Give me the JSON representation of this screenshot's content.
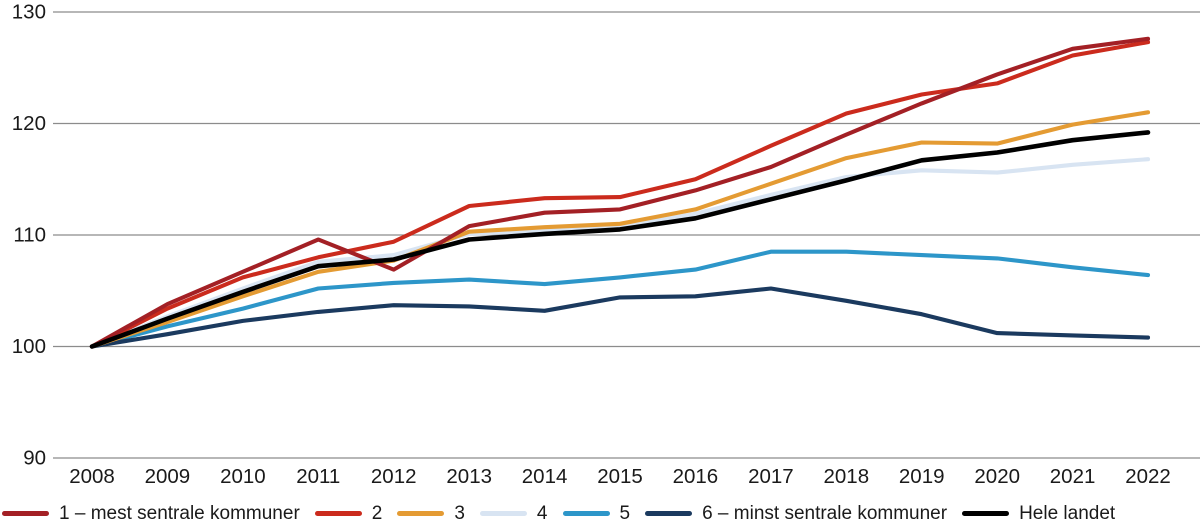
{
  "chart_data": {
    "type": "line",
    "title": "",
    "xlabel": "",
    "ylabel": "",
    "x": [
      2008,
      2009,
      2010,
      2011,
      2012,
      2013,
      2014,
      2015,
      2016,
      2017,
      2018,
      2019,
      2020,
      2021,
      2022
    ],
    "ylim": [
      90,
      130
    ],
    "yticks": [
      90,
      100,
      110,
      120,
      130
    ],
    "grid": true,
    "legend_position": "bottom",
    "series": [
      {
        "name": "1 – mest sentrale kommuner",
        "color": "#A32025",
        "values": [
          100,
          103.8,
          106.7,
          109.6,
          106.9,
          110.8,
          112.0,
          112.3,
          114.0,
          116.1,
          119.0,
          121.8,
          124.4,
          126.7,
          127.6
        ]
      },
      {
        "name": "2",
        "color": "#CB2B1D",
        "values": [
          100,
          103.4,
          106.2,
          108.0,
          109.4,
          112.6,
          113.3,
          113.4,
          115.0,
          118.0,
          120.9,
          122.6,
          123.6,
          126.1,
          127.3
        ]
      },
      {
        "name": "3",
        "color": "#E49B33",
        "values": [
          100,
          102.2,
          104.5,
          106.7,
          107.7,
          110.3,
          110.7,
          111.0,
          112.3,
          114.6,
          116.9,
          118.3,
          118.2,
          119.9,
          121.0
        ]
      },
      {
        "name": "4",
        "color": "#D8E4F2",
        "values": [
          100,
          102.7,
          105.2,
          107.6,
          108.2,
          110.1,
          110.4,
          110.7,
          111.9,
          113.6,
          115.2,
          115.8,
          115.6,
          116.3,
          116.8
        ]
      },
      {
        "name": "5",
        "color": "#2D96C9",
        "values": [
          100,
          101.8,
          103.4,
          105.2,
          105.7,
          106.0,
          105.6,
          106.2,
          106.9,
          108.5,
          108.5,
          108.2,
          107.9,
          107.1,
          106.4
        ]
      },
      {
        "name": "6 – minst sentrale kommuner",
        "color": "#1B3A5F",
        "values": [
          100,
          101.1,
          102.3,
          103.1,
          103.7,
          103.6,
          103.2,
          104.4,
          104.5,
          105.2,
          104.1,
          102.9,
          101.2,
          101.0,
          100.8
        ]
      },
      {
        "name": "Hele landet",
        "color": "#000000",
        "values": [
          100,
          102.5,
          104.9,
          107.2,
          107.8,
          109.6,
          110.1,
          110.5,
          111.5,
          113.2,
          114.9,
          116.7,
          117.4,
          118.5,
          119.2
        ]
      }
    ]
  },
  "legend": {
    "items": [
      {
        "label": "1 – mest sentrale kommuner",
        "color": "#A32025"
      },
      {
        "label": "2",
        "color": "#CB2B1D"
      },
      {
        "label": "3",
        "color": "#E49B33"
      },
      {
        "label": "4",
        "color": "#D8E4F2"
      },
      {
        "label": "5",
        "color": "#2D96C9"
      },
      {
        "label": "6 – minst sentrale kommuner",
        "color": "#1B3A5F"
      },
      {
        "label": "Hele landet",
        "color": "#000000"
      }
    ]
  }
}
